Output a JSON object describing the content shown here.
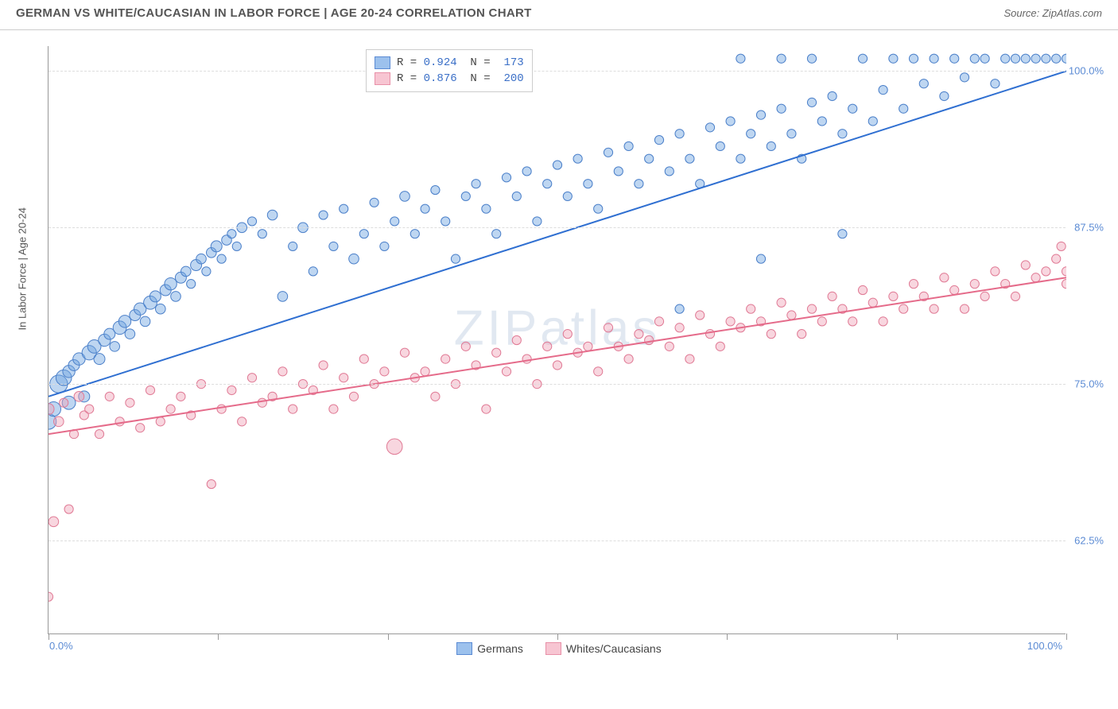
{
  "header": {
    "title": "GERMAN VS WHITE/CAUCASIAN IN LABOR FORCE | AGE 20-24 CORRELATION CHART",
    "source": "Source: ZipAtlas.com"
  },
  "chart": {
    "type": "scatter",
    "watermark": "ZIPatlas",
    "y_label": "In Labor Force | Age 20-24",
    "x_domain": [
      0,
      100
    ],
    "y_domain_blue": [
      55,
      102
    ],
    "y_domain_pink": [
      55,
      102
    ],
    "x_ticks": [
      0,
      16.67,
      33.33,
      50,
      66.67,
      83.33,
      100
    ],
    "x_tick_labels": {
      "left": "0.0%",
      "right": "100.0%"
    },
    "y_ticks": [
      62.5,
      75.0,
      87.5,
      100.0
    ],
    "y_tick_labels": [
      "62.5%",
      "75.0%",
      "87.5%",
      "100.0%"
    ],
    "grid_color": "#dddddd",
    "axis_color": "#999999",
    "background": "#ffffff",
    "series": [
      {
        "name": "Germans",
        "color_fill": "#6fa3e0",
        "color_stroke": "#4a7fc9",
        "swatch_fill": "#9cc1ed",
        "swatch_border": "#5b8bd4",
        "r_stat": "0.924",
        "n_stat": "173",
        "trend": {
          "x1": 0,
          "y1": 74.0,
          "x2": 100,
          "y2": 100.0,
          "color": "#2f6fd1",
          "width": 2
        },
        "marker_opacity": 0.45,
        "points": [
          [
            0,
            72,
            14
          ],
          [
            0.5,
            73,
            13
          ],
          [
            1,
            75,
            16
          ],
          [
            1.5,
            75.5,
            14
          ],
          [
            2,
            73.5,
            12
          ],
          [
            2,
            76,
            11
          ],
          [
            2.5,
            76.5,
            10
          ],
          [
            3,
            77,
            11
          ],
          [
            3.5,
            74,
            10
          ],
          [
            4,
            77.5,
            13
          ],
          [
            4.5,
            78,
            12
          ],
          [
            5,
            77,
            10
          ],
          [
            5.5,
            78.5,
            11
          ],
          [
            6,
            79,
            10
          ],
          [
            6.5,
            78,
            9
          ],
          [
            7,
            79.5,
            12
          ],
          [
            7.5,
            80,
            11
          ],
          [
            8,
            79,
            9
          ],
          [
            8.5,
            80.5,
            10
          ],
          [
            9,
            81,
            11
          ],
          [
            9.5,
            80,
            9
          ],
          [
            10,
            81.5,
            12
          ],
          [
            10.5,
            82,
            10
          ],
          [
            11,
            81,
            9
          ],
          [
            11.5,
            82.5,
            10
          ],
          [
            12,
            83,
            11
          ],
          [
            12.5,
            82,
            9
          ],
          [
            13,
            83.5,
            10
          ],
          [
            13.5,
            84,
            9
          ],
          [
            14,
            83,
            8
          ],
          [
            14.5,
            84.5,
            10
          ],
          [
            15,
            85,
            9
          ],
          [
            15.5,
            84,
            8
          ],
          [
            16,
            85.5,
            9
          ],
          [
            16.5,
            86,
            10
          ],
          [
            17,
            85,
            8
          ],
          [
            17.5,
            86.5,
            9
          ],
          [
            18,
            87,
            8
          ],
          [
            18.5,
            86,
            8
          ],
          [
            19,
            87.5,
            9
          ],
          [
            20,
            88,
            8
          ],
          [
            21,
            87,
            8
          ],
          [
            22,
            88.5,
            9
          ],
          [
            23,
            82,
            9
          ],
          [
            24,
            86,
            8
          ],
          [
            25,
            87.5,
            9
          ],
          [
            26,
            84,
            8
          ],
          [
            27,
            88.5,
            8
          ],
          [
            28,
            86,
            8
          ],
          [
            29,
            89,
            8
          ],
          [
            30,
            85,
            9
          ],
          [
            31,
            87,
            8
          ],
          [
            32,
            89.5,
            8
          ],
          [
            33,
            86,
            8
          ],
          [
            34,
            88,
            8
          ],
          [
            35,
            90,
            9
          ],
          [
            36,
            87,
            8
          ],
          [
            37,
            89,
            8
          ],
          [
            38,
            90.5,
            8
          ],
          [
            39,
            88,
            8
          ],
          [
            40,
            85,
            8
          ],
          [
            41,
            90,
            8
          ],
          [
            42,
            91,
            8
          ],
          [
            43,
            89,
            8
          ],
          [
            44,
            87,
            8
          ],
          [
            45,
            91.5,
            8
          ],
          [
            46,
            90,
            8
          ],
          [
            47,
            92,
            8
          ],
          [
            48,
            88,
            8
          ],
          [
            49,
            91,
            8
          ],
          [
            50,
            92.5,
            8
          ],
          [
            51,
            90,
            8
          ],
          [
            52,
            93,
            8
          ],
          [
            53,
            91,
            8
          ],
          [
            54,
            89,
            8
          ],
          [
            55,
            93.5,
            8
          ],
          [
            56,
            92,
            8
          ],
          [
            57,
            94,
            8
          ],
          [
            58,
            91,
            8
          ],
          [
            59,
            93,
            8
          ],
          [
            60,
            94.5,
            8
          ],
          [
            61,
            92,
            8
          ],
          [
            62,
            95,
            8
          ],
          [
            62,
            81,
            8
          ],
          [
            63,
            93,
            8
          ],
          [
            64,
            91,
            8
          ],
          [
            65,
            95.5,
            8
          ],
          [
            66,
            94,
            8
          ],
          [
            67,
            96,
            8
          ],
          [
            68,
            93,
            8
          ],
          [
            69,
            95,
            8
          ],
          [
            70,
            96.5,
            8
          ],
          [
            70,
            85,
            8
          ],
          [
            71,
            94,
            8
          ],
          [
            72,
            97,
            8
          ],
          [
            73,
            95,
            8
          ],
          [
            74,
            93,
            8
          ],
          [
            75,
            97.5,
            8
          ],
          [
            76,
            96,
            8
          ],
          [
            77,
            98,
            8
          ],
          [
            78,
            95,
            8
          ],
          [
            79,
            97,
            8
          ],
          [
            80,
            101,
            8
          ],
          [
            81,
            96,
            8
          ],
          [
            82,
            98.5,
            8
          ],
          [
            83,
            101,
            8
          ],
          [
            84,
            97,
            8
          ],
          [
            85,
            101,
            8
          ],
          [
            86,
            99,
            8
          ],
          [
            87,
            101,
            8
          ],
          [
            88,
            98,
            8
          ],
          [
            89,
            101,
            8
          ],
          [
            90,
            99.5,
            8
          ],
          [
            91,
            101,
            8
          ],
          [
            92,
            101,
            8
          ],
          [
            93,
            99,
            8
          ],
          [
            94,
            101,
            8
          ],
          [
            95,
            101,
            8
          ],
          [
            96,
            101,
            8
          ],
          [
            97,
            101,
            8
          ],
          [
            98,
            101,
            8
          ],
          [
            99,
            101,
            8
          ],
          [
            100,
            101,
            8
          ],
          [
            68,
            101,
            8
          ],
          [
            72,
            101,
            8
          ],
          [
            75,
            101,
            8
          ],
          [
            78,
            87,
            8
          ]
        ]
      },
      {
        "name": "Whites/Caucasians",
        "color_fill": "#f0a5b8",
        "color_stroke": "#e07a95",
        "swatch_fill": "#f7c5d2",
        "swatch_border": "#e890a8",
        "r_stat": "0.876",
        "n_stat": "200",
        "trend": {
          "x1": 0,
          "y1": 71.0,
          "x2": 100,
          "y2": 83.5,
          "color": "#e56b8a",
          "width": 2
        },
        "marker_opacity": 0.45,
        "points": [
          [
            0,
            73,
            10
          ],
          [
            0,
            58,
            8
          ],
          [
            0.5,
            64,
            9
          ],
          [
            1,
            72,
            9
          ],
          [
            1.5,
            73.5,
            8
          ],
          [
            2,
            65,
            8
          ],
          [
            2.5,
            71,
            8
          ],
          [
            3,
            74,
            9
          ],
          [
            3.5,
            72.5,
            8
          ],
          [
            4,
            73,
            8
          ],
          [
            5,
            71,
            8
          ],
          [
            6,
            74,
            8
          ],
          [
            7,
            72,
            8
          ],
          [
            8,
            73.5,
            8
          ],
          [
            9,
            71.5,
            8
          ],
          [
            10,
            74.5,
            8
          ],
          [
            11,
            72,
            8
          ],
          [
            12,
            73,
            8
          ],
          [
            13,
            74,
            8
          ],
          [
            14,
            72.5,
            8
          ],
          [
            15,
            75,
            8
          ],
          [
            16,
            67,
            8
          ],
          [
            17,
            73,
            8
          ],
          [
            18,
            74.5,
            8
          ],
          [
            19,
            72,
            8
          ],
          [
            20,
            75.5,
            8
          ],
          [
            21,
            73.5,
            8
          ],
          [
            22,
            74,
            8
          ],
          [
            23,
            76,
            8
          ],
          [
            24,
            73,
            8
          ],
          [
            25,
            75,
            8
          ],
          [
            26,
            74.5,
            8
          ],
          [
            27,
            76.5,
            8
          ],
          [
            28,
            73,
            8
          ],
          [
            29,
            75.5,
            8
          ],
          [
            30,
            74,
            8
          ],
          [
            31,
            77,
            8
          ],
          [
            32,
            75,
            8
          ],
          [
            33,
            76,
            8
          ],
          [
            34,
            70,
            14
          ],
          [
            35,
            77.5,
            8
          ],
          [
            36,
            75.5,
            8
          ],
          [
            37,
            76,
            8
          ],
          [
            38,
            74,
            8
          ],
          [
            39,
            77,
            8
          ],
          [
            40,
            75,
            8
          ],
          [
            41,
            78,
            8
          ],
          [
            42,
            76.5,
            8
          ],
          [
            43,
            73,
            8
          ],
          [
            44,
            77.5,
            8
          ],
          [
            45,
            76,
            8
          ],
          [
            46,
            78.5,
            8
          ],
          [
            47,
            77,
            8
          ],
          [
            48,
            75,
            8
          ],
          [
            49,
            78,
            8
          ],
          [
            50,
            76.5,
            8
          ],
          [
            51,
            79,
            8
          ],
          [
            52,
            77.5,
            8
          ],
          [
            53,
            78,
            8
          ],
          [
            54,
            76,
            8
          ],
          [
            55,
            79.5,
            8
          ],
          [
            56,
            78,
            8
          ],
          [
            57,
            77,
            8
          ],
          [
            58,
            79,
            8
          ],
          [
            59,
            78.5,
            8
          ],
          [
            60,
            80,
            8
          ],
          [
            61,
            78,
            8
          ],
          [
            62,
            79.5,
            8
          ],
          [
            63,
            77,
            8
          ],
          [
            64,
            80.5,
            8
          ],
          [
            65,
            79,
            8
          ],
          [
            66,
            78,
            8
          ],
          [
            67,
            80,
            8
          ],
          [
            68,
            79.5,
            8
          ],
          [
            69,
            81,
            8
          ],
          [
            70,
            80,
            8
          ],
          [
            71,
            79,
            8
          ],
          [
            72,
            81.5,
            8
          ],
          [
            73,
            80.5,
            8
          ],
          [
            74,
            79,
            8
          ],
          [
            75,
            81,
            8
          ],
          [
            76,
            80,
            8
          ],
          [
            77,
            82,
            8
          ],
          [
            78,
            81,
            8
          ],
          [
            79,
            80,
            8
          ],
          [
            80,
            82.5,
            8
          ],
          [
            81,
            81.5,
            8
          ],
          [
            82,
            80,
            8
          ],
          [
            83,
            82,
            8
          ],
          [
            84,
            81,
            8
          ],
          [
            85,
            83,
            8
          ],
          [
            86,
            82,
            8
          ],
          [
            87,
            81,
            8
          ],
          [
            88,
            83.5,
            8
          ],
          [
            89,
            82.5,
            8
          ],
          [
            90,
            81,
            8
          ],
          [
            91,
            83,
            8
          ],
          [
            92,
            82,
            8
          ],
          [
            93,
            84,
            8
          ],
          [
            94,
            83,
            8
          ],
          [
            95,
            82,
            8
          ],
          [
            96,
            84.5,
            8
          ],
          [
            97,
            83.5,
            8
          ],
          [
            98,
            84,
            8
          ],
          [
            99,
            85,
            8
          ],
          [
            99.5,
            86,
            8
          ],
          [
            100,
            84,
            8
          ],
          [
            100,
            83,
            8
          ]
        ]
      }
    ],
    "legend_bottom": [
      {
        "label": "Germans",
        "fill": "#9cc1ed",
        "border": "#5b8bd4"
      },
      {
        "label": "Whites/Caucasians",
        "fill": "#f7c5d2",
        "border": "#e890a8"
      }
    ]
  }
}
